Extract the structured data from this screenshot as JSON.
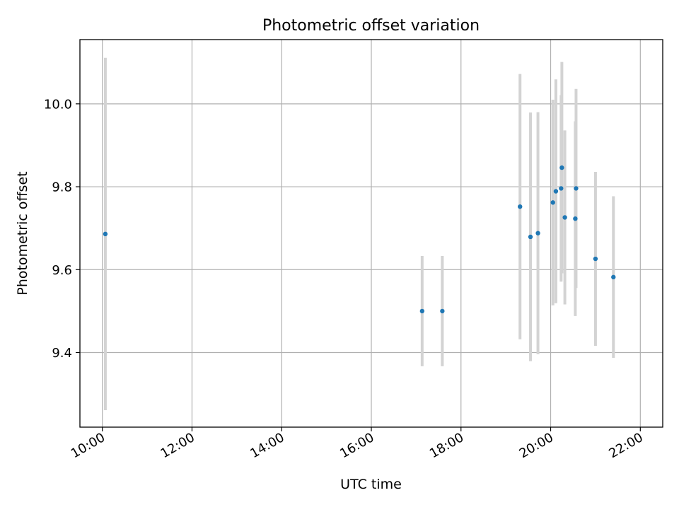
{
  "chart_data": {
    "type": "scatter",
    "title": "Photometric offset variation",
    "xlabel": "UTC time",
    "ylabel": "Photometric offset",
    "xlim": [
      "09:30",
      "22:30"
    ],
    "ylim": [
      9.22,
      10.155
    ],
    "xticks": [
      "10:00",
      "12:00",
      "14:00",
      "16:00",
      "18:00",
      "20:00",
      "22:00"
    ],
    "yticks": [
      "9.4",
      "9.6",
      "9.8",
      "10.0"
    ],
    "grid": true,
    "marker_color": "#1f77b4",
    "errorbar_color": "#d3d3d3",
    "points": [
      {
        "time": "10:04",
        "y": 9.686,
        "err": 0.425
      },
      {
        "time": "17:08",
        "y": 9.5,
        "err": 0.133
      },
      {
        "time": "17:35",
        "y": 9.5,
        "err": 0.133
      },
      {
        "time": "19:19",
        "y": 9.752,
        "err": 0.32
      },
      {
        "time": "19:33",
        "y": 9.679,
        "err": 0.3
      },
      {
        "time": "19:43",
        "y": 9.688,
        "err": 0.292
      },
      {
        "time": "20:03",
        "y": 9.762,
        "err": 0.248
      },
      {
        "time": "20:07",
        "y": 9.789,
        "err": 0.27
      },
      {
        "time": "20:14",
        "y": 9.796,
        "err": 0.225
      },
      {
        "time": "20:15",
        "y": 9.846,
        "err": 0.255
      },
      {
        "time": "20:19",
        "y": 9.726,
        "err": 0.21
      },
      {
        "time": "20:33",
        "y": 9.723,
        "err": 0.235
      },
      {
        "time": "20:34",
        "y": 9.796,
        "err": 0.24
      },
      {
        "time": "21:00",
        "y": 9.626,
        "err": 0.21
      },
      {
        "time": "21:24",
        "y": 9.582,
        "err": 0.195
      }
    ]
  }
}
